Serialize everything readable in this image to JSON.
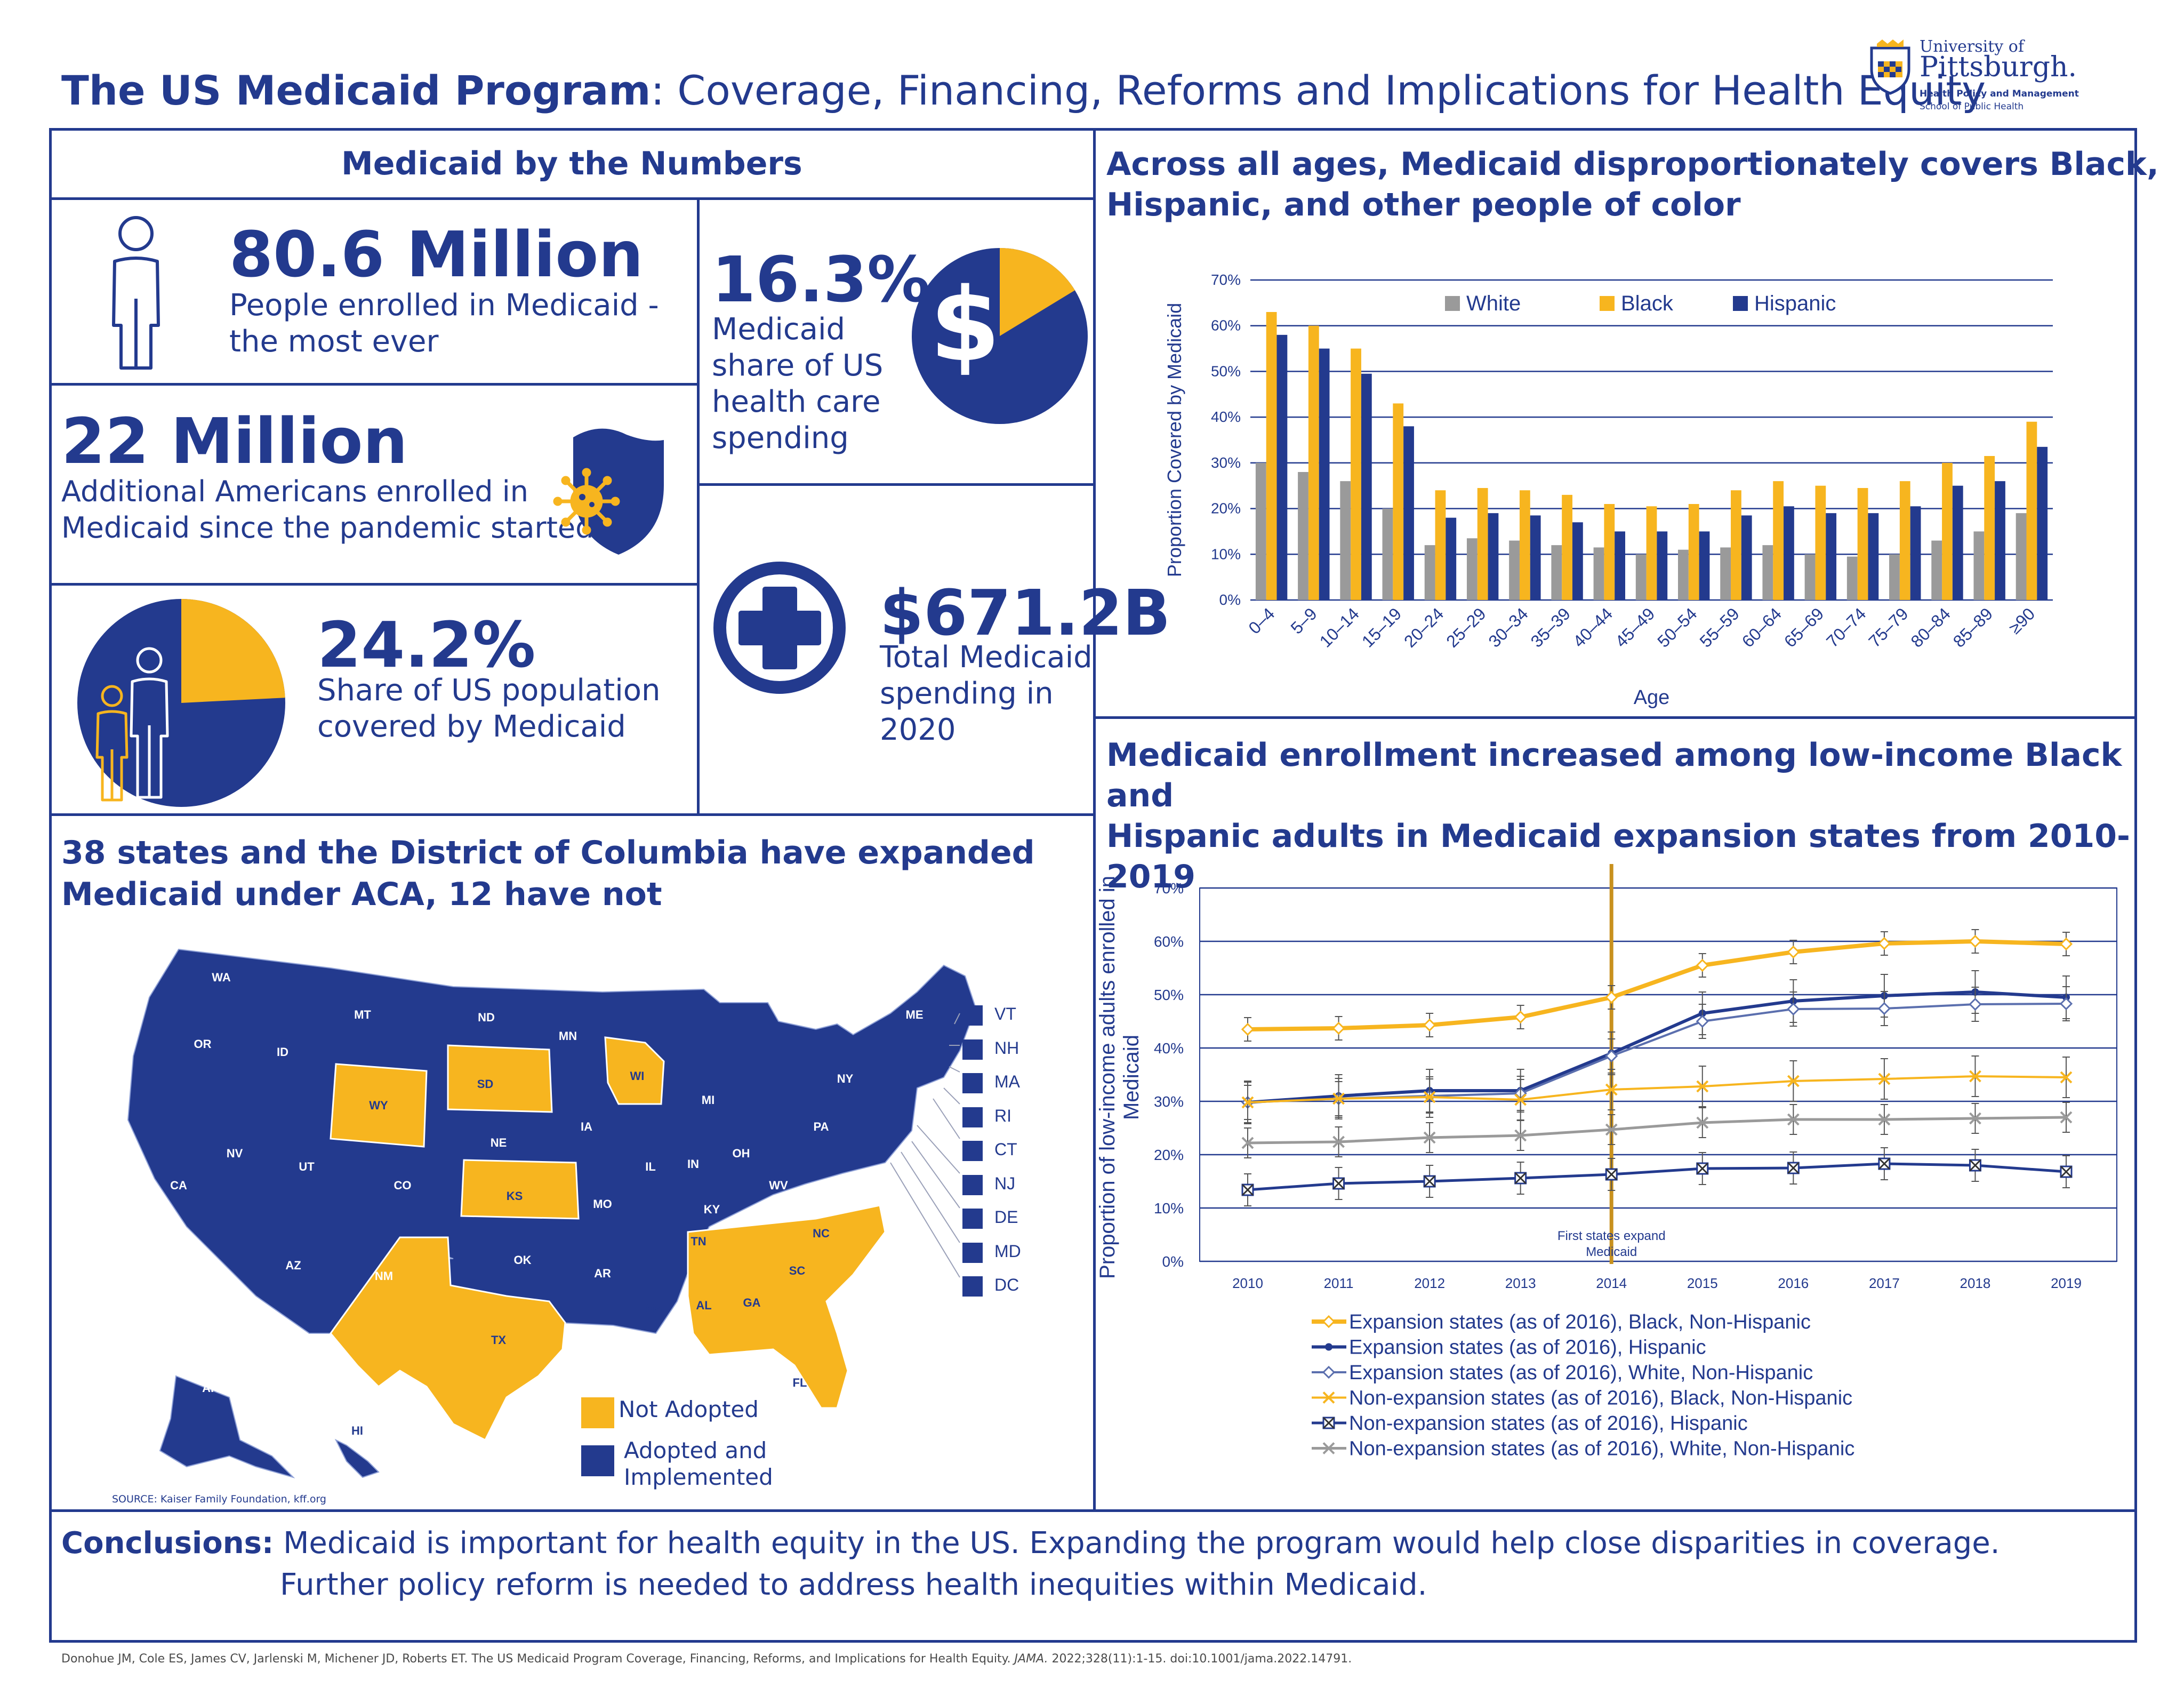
{
  "header": {
    "title_bold": "The US Medicaid Program",
    "title_rest": ": Coverage, Financing, Reforms and Implications for Health Equity",
    "logo_university": "University of",
    "logo_pittsburgh": "Pittsburgh.",
    "logo_department": "Health Policy and Management",
    "logo_school": "School of Public Health"
  },
  "numbers": {
    "section_title": "Medicaid by the Numbers",
    "enrolled_value": "80.6 Million",
    "enrolled_desc_1": "People enrolled in Medicaid -",
    "enrolled_desc_2": "the most ever",
    "share_spending_value": "16.3%",
    "share_spending_desc_1": "Medicaid",
    "share_spending_desc_2": "share of US",
    "share_spending_desc_3": "health care",
    "share_spending_desc_4": "spending",
    "share_spending_fraction": 0.163,
    "additional_value": "22 Million",
    "additional_desc_1": "Additional Americans enrolled in",
    "additional_desc_2": "Medicaid since the pandemic started",
    "population_value": "24.2%",
    "population_desc_1": "Share of US population",
    "population_desc_2": "covered by Medicaid",
    "population_fraction": 0.242,
    "spending_value": "$671.2B",
    "spending_desc_1": "Total Medicaid",
    "spending_desc_2": "spending in",
    "spending_desc_3": "2020"
  },
  "map_section": {
    "title_1": "38 states and the District of Columbia have expanded",
    "title_2": "Medicaid under ACA, 12 have not",
    "legend_not_adopted": "Not Adopted",
    "legend_adopted_1": "Adopted and",
    "legend_adopted_2": "Implemented",
    "source": "SOURCE: Kaiser Family Foundation, kff.org",
    "small_states": [
      "VT",
      "NH",
      "MA",
      "RI",
      "CT",
      "NJ",
      "DE",
      "MD",
      "DC"
    ],
    "colors": {
      "adopted": "#233a8e",
      "not_adopted": "#f7b51f"
    }
  },
  "chart1_section": {
    "title_1": "Across all ages, Medicaid disproportionately covers Black,",
    "title_2": "Hispanic, and other people of color"
  },
  "chart2_section": {
    "title_1": "Medicaid enrollment increased among low-income Black and",
    "title_2": "Hispanic adults in Medicaid expansion states from 2010-2019"
  },
  "conclusions": {
    "label": "Conclusions:",
    "line1": " Medicaid is important for health equity in the US. Expanding the program would help close disparities in coverage.",
    "line2": "Further policy reform is needed to address health inequities within Medicaid."
  },
  "citation": {
    "pre": "Donohue JM, Cole ES, James CV, Jarlenski M, Michener JD, Roberts ET. The US Medicaid Program Coverage, Financing, Reforms, and Implications for Health Equity. ",
    "journal": "JAMA.",
    "post": " 2022;328(11):1-15. doi:10.1001/jama.2022.14791."
  },
  "chart_data": [
    {
      "type": "bar",
      "xlabel": "Age",
      "ylabel": "Proportion Covered by Medicaid",
      "ylim": [
        0,
        70
      ],
      "yticks": [
        "0%",
        "10%",
        "20%",
        "30%",
        "40%",
        "50%",
        "60%",
        "70%"
      ],
      "categories": [
        "0–4",
        "5–9",
        "10–14",
        "15–19",
        "20–24",
        "25–29",
        "30–34",
        "35–39",
        "40–44",
        "45–49",
        "50–54",
        "55–59",
        "60–64",
        "65–69",
        "70–74",
        "75–79",
        "80–84",
        "85–89",
        "≥90"
      ],
      "legend_position": "top",
      "grid": true,
      "series": [
        {
          "name": "White",
          "color": "#9a9a9a",
          "values": [
            30,
            28,
            26,
            20,
            12,
            13.5,
            13,
            12,
            11.5,
            10,
            11,
            11.5,
            12,
            10,
            9.5,
            10,
            13,
            15,
            19
          ]
        },
        {
          "name": "Black",
          "color": "#f7b51f",
          "values": [
            63,
            60,
            55,
            43,
            24,
            24.5,
            24,
            23,
            21,
            20.5,
            21,
            24,
            26,
            25,
            24.5,
            26,
            30,
            31.5,
            39
          ]
        },
        {
          "name": "Hispanic",
          "color": "#233a8e",
          "values": [
            58,
            55,
            49.5,
            38,
            18,
            19,
            18.5,
            17,
            15,
            15,
            15,
            18.5,
            20.5,
            19,
            19,
            20.5,
            25,
            26,
            33.5
          ]
        }
      ]
    },
    {
      "type": "line",
      "xlabel": "",
      "ylabel": "Proportion of low-income adults enrolled in Medicaid",
      "ylim": [
        0,
        70
      ],
      "yticks": [
        "0%",
        "10%",
        "20%",
        "30%",
        "40%",
        "50%",
        "60%",
        "70%"
      ],
      "x": [
        2010,
        2011,
        2012,
        2013,
        2014,
        2015,
        2016,
        2017,
        2018,
        2019
      ],
      "annotation": {
        "x": 2014,
        "text_1": "First states expand",
        "text_2": "Medicaid"
      },
      "grid": true,
      "legend_position": "bottom",
      "series": [
        {
          "name": "Expansion states (as of 2016), Black, Non-Hispanic",
          "color": "#f7b51f",
          "marker": "diamond",
          "width": 8,
          "values": [
            43.5,
            43.7,
            44.3,
            45.8,
            49.5,
            55.5,
            58,
            59.6,
            60,
            59.5
          ],
          "error": 2.2
        },
        {
          "name": "Expansion states (as of 2016), Hispanic",
          "color": "#233a8e",
          "marker": "dot",
          "width": 6,
          "values": [
            29.8,
            31,
            32,
            32,
            39,
            46.5,
            48.8,
            49.8,
            50.5,
            49.5
          ],
          "error": 4
        },
        {
          "name": "Expansion states (as of 2016), White, Non-Hispanic",
          "color": "#5b6fae",
          "marker": "diamond",
          "width": 4,
          "values": [
            29.8,
            30.5,
            31,
            31.5,
            38.5,
            45,
            47.3,
            47.4,
            48.2,
            48.3
          ],
          "error": 3.2
        },
        {
          "name": "Non-expansion states (as of 2016), Black, Non-Hispanic",
          "color": "#f7b51f",
          "marker": "x",
          "width": 4,
          "values": [
            29.8,
            30.5,
            30.8,
            30.3,
            32.2,
            32.8,
            33.8,
            34.2,
            34.7,
            34.5
          ],
          "error": 3.8
        },
        {
          "name": "Non-expansion states (as of 2016), Hispanic",
          "color": "#233a8e",
          "marker": "boxx",
          "width": 5,
          "values": [
            13.4,
            14.6,
            15,
            15.6,
            16.3,
            17.4,
            17.5,
            18.3,
            18,
            16.8
          ],
          "error": 3
        },
        {
          "name": "Non-expansion states (as of 2016), White, Non-Hispanic",
          "color": "#9a9a9a",
          "marker": "x",
          "width": 5,
          "values": [
            22.2,
            22.4,
            23.2,
            23.6,
            24.7,
            26,
            26.6,
            26.6,
            26.8,
            27
          ],
          "error": 2.8
        }
      ]
    }
  ]
}
